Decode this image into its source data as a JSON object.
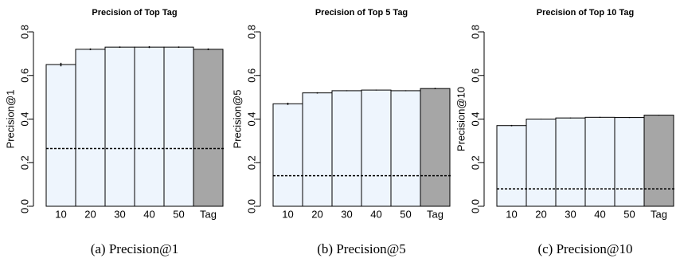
{
  "chart_data": [
    {
      "type": "bar",
      "title": "Precision of Top Tag",
      "ylabel": "Precision@1",
      "caption": "(a) Precision@1",
      "categories": [
        "10",
        "20",
        "30",
        "40",
        "50",
        "Tag"
      ],
      "values": [
        0.65,
        0.72,
        0.73,
        0.73,
        0.73,
        0.72
      ],
      "errors": [
        0.008,
        0.004,
        0.003,
        0.004,
        0.003,
        0.004
      ],
      "colors": [
        "#eef5fd",
        "#eef5fd",
        "#eef5fd",
        "#eef5fd",
        "#eef5fd",
        "#a6a6a6"
      ],
      "baseline": 0.265,
      "ylim": [
        0,
        0.8
      ],
      "yticks": [
        {
          "value": 0,
          "label": "0.0"
        },
        0.2,
        0.4,
        0.6,
        0.8
      ]
    },
    {
      "type": "bar",
      "title": "Precision of Top 5 Tag",
      "ylabel": "Precision@5",
      "caption": "(b) Precision@5",
      "categories": [
        "10",
        "20",
        "30",
        "40",
        "50",
        "Tag"
      ],
      "values": [
        0.47,
        0.52,
        0.53,
        0.533,
        0.53,
        0.54
      ],
      "errors": [
        0.005,
        0.003,
        0.002,
        0.002,
        0.002,
        0.003
      ],
      "colors": [
        "#eef5fd",
        "#eef5fd",
        "#eef5fd",
        "#eef5fd",
        "#eef5fd",
        "#a6a6a6"
      ],
      "baseline": 0.14,
      "ylim": [
        0,
        0.8
      ],
      "yticks": [
        {
          "value": 0,
          "label": "0.0"
        },
        0.2,
        0.4,
        0.6,
        0.8
      ]
    },
    {
      "type": "bar",
      "title": "Precision of Top 10 Tag",
      "ylabel": "Precision@10",
      "caption": "(c) Precision@10",
      "categories": [
        "10",
        "20",
        "30",
        "40",
        "50",
        "Tag"
      ],
      "values": [
        0.37,
        0.4,
        0.405,
        0.408,
        0.407,
        0.418
      ],
      "errors": [
        0.003,
        0.002,
        0.002,
        0.002,
        0.002,
        0.002
      ],
      "colors": [
        "#eef5fd",
        "#eef5fd",
        "#eef5fd",
        "#eef5fd",
        "#eef5fd",
        "#a6a6a6"
      ],
      "baseline": 0.08,
      "ylim": [
        0,
        0.8
      ],
      "yticks": [
        {
          "value": 0,
          "label": "0.0"
        },
        0.2,
        0.4,
        0.6,
        0.8
      ]
    }
  ]
}
